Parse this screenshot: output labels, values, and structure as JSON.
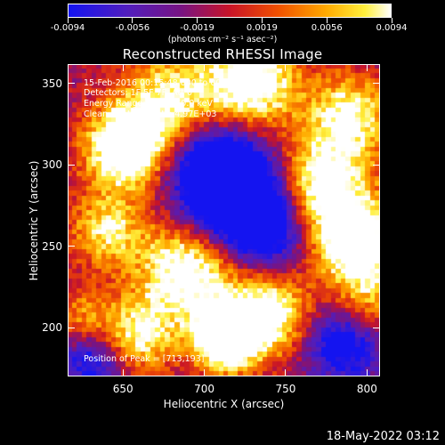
{
  "chart_data": {
    "type": "heatmap",
    "title": "Reconstructed RHESSI Image",
    "xlabel": "Heliocentric X (arcsec)",
    "ylabel": "Heliocentric Y (arcsec)",
    "xlim": [
      616,
      808
    ],
    "ylim": [
      170,
      362
    ],
    "x_ticks": [
      650,
      700,
      750,
      800
    ],
    "y_ticks": [
      200,
      250,
      300,
      350
    ],
    "colorbar": {
      "range": [
        -0.0094,
        0.0094
      ],
      "tick_labels": [
        "-0.0094",
        "-0.0056",
        "-0.0019",
        "0.0019",
        "0.0056",
        "0.0094"
      ],
      "unit_label": "(photons cm⁻² s⁻¹ asec⁻²)",
      "colormap": "rainbow-blue-to-white"
    },
    "annotations": {
      "time": "15-Feb-2016 00:15:48.000 to 00:19:48.000",
      "detectors": "Detectors: 1F 5F 7F, Att 0",
      "energy": "Energy Range: 25.0 - 50.0 keV",
      "clean": "Clean    Total counts: 4.97E+03",
      "peak": "Position of Peak = [713,193]"
    },
    "peak_position": [
      713,
      193
    ]
  },
  "footer": {
    "timestamp": "18-May-2022 03:12"
  }
}
